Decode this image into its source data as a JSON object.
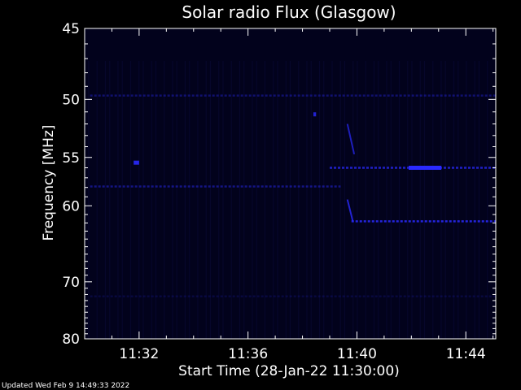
{
  "chart_data": {
    "type": "heatmap",
    "title": "Solar radio Flux (Glasgow)",
    "xlabel": "Start Time (28-Jan-22 11:30:00)",
    "ylabel": "Frequency [MHz]",
    "x_unit": "minutes after 11:30:00",
    "xlim": [
      0,
      15.1
    ],
    "ylim": [
      45,
      80
    ],
    "y_axis_inverted": true,
    "x_ticks": [
      {
        "value": 2,
        "label": "11:32"
      },
      {
        "value": 6,
        "label": "11:36"
      },
      {
        "value": 10,
        "label": "11:40"
      },
      {
        "value": 14,
        "label": "11:44"
      }
    ],
    "y_ticks": [
      {
        "value": 45,
        "label": "45"
      },
      {
        "value": 50,
        "label": "50"
      },
      {
        "value": 55,
        "label": "55"
      },
      {
        "value": 60,
        "label": "60"
      },
      {
        "value": 70,
        "label": "70"
      },
      {
        "value": 80,
        "label": "80"
      }
    ],
    "background_color": "#000000",
    "plot_area_color": "#02021c",
    "signal_color": "#2a2aff",
    "features": [
      {
        "kind": "band",
        "freq": 49.7,
        "t_start": 0.2,
        "t_end": 15.1,
        "intensity": 0.35
      },
      {
        "kind": "band",
        "freq": 57.9,
        "t_start": 0.2,
        "t_end": 9.4,
        "intensity": 0.45
      },
      {
        "kind": "band",
        "freq": 56.0,
        "t_start": 9.0,
        "t_end": 15.1,
        "intensity": 0.75
      },
      {
        "kind": "band",
        "freq": 61.8,
        "t_start": 9.8,
        "t_end": 15.1,
        "intensity": 0.85
      },
      {
        "kind": "band",
        "freq": 72.3,
        "t_start": 0.2,
        "t_end": 15.1,
        "intensity": 0.15
      },
      {
        "kind": "blob",
        "freq": 56.0,
        "t_start": 11.9,
        "t_end": 13.1,
        "intensity": 1.0
      },
      {
        "kind": "blob",
        "freq": 55.5,
        "t_start": 1.8,
        "t_end": 2.0,
        "intensity": 0.9
      },
      {
        "kind": "blob",
        "freq": 51.2,
        "t_start": 8.4,
        "t_end": 8.5,
        "intensity": 0.8
      },
      {
        "kind": "drift",
        "freq_start": 52.0,
        "freq_end": 54.7,
        "t_start": 9.65,
        "t_end": 9.9,
        "intensity": 0.7
      },
      {
        "kind": "drift",
        "freq_start": 59.3,
        "freq_end": 61.8,
        "t_start": 9.65,
        "t_end": 9.85,
        "intensity": 0.8
      }
    ]
  },
  "footer": {
    "updated": "Updated Wed Feb  9 14:49:33 2022"
  }
}
